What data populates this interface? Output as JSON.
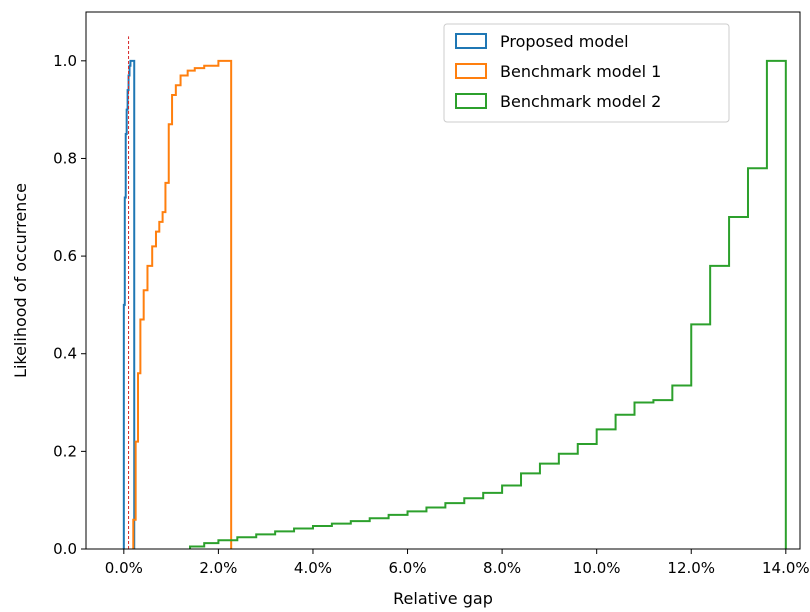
{
  "chart_data": {
    "type": "line",
    "subtype": "cumulative-step-histogram",
    "title": "",
    "xlabel": "Relative gap",
    "ylabel": "Likelihood of occurrence",
    "xlim": [
      -0.8,
      14.3
    ],
    "ylim": [
      0.0,
      1.1
    ],
    "x_ticks": [
      0,
      2,
      4,
      6,
      8,
      10,
      12,
      14
    ],
    "x_tick_labels": [
      "0.0%",
      "2.0%",
      "4.0%",
      "6.0%",
      "8.0%",
      "10.0%",
      "12.0%",
      "14.0%"
    ],
    "y_ticks": [
      0.0,
      0.2,
      0.4,
      0.6,
      0.8,
      1.0
    ],
    "y_tick_labels": [
      "0.0",
      "0.2",
      "0.4",
      "0.6",
      "0.8",
      "1.0"
    ],
    "grid": false,
    "legend_position": "top-right",
    "reference_line": {
      "x": 0.1,
      "y_top": 1.05,
      "color": "#d62728",
      "style": "dashed"
    },
    "series": [
      {
        "name": "Proposed model",
        "color": "#1f77b4",
        "x": [
          0.0,
          0.02,
          0.04,
          0.06,
          0.08,
          0.1,
          0.12,
          0.14,
          0.18,
          0.22
        ],
        "y": [
          0.5,
          0.72,
          0.85,
          0.9,
          0.94,
          0.97,
          0.99,
          1.0,
          1.0,
          0.0
        ]
      },
      {
        "name": "Benchmark model 1",
        "color": "#ff7f0e",
        "x": [
          0.2,
          0.25,
          0.3,
          0.35,
          0.42,
          0.5,
          0.6,
          0.68,
          0.75,
          0.82,
          0.88,
          0.95,
          1.02,
          1.1,
          1.2,
          1.35,
          1.5,
          1.7,
          2.0,
          2.27
        ],
        "y": [
          0.06,
          0.22,
          0.36,
          0.47,
          0.53,
          0.58,
          0.62,
          0.65,
          0.67,
          0.69,
          0.75,
          0.87,
          0.93,
          0.95,
          0.97,
          0.98,
          0.985,
          0.99,
          1.0,
          0.0
        ]
      },
      {
        "name": "Benchmark model 2",
        "color": "#2ca02c",
        "x": [
          1.4,
          1.7,
          2.0,
          2.4,
          2.8,
          3.2,
          3.6,
          4.0,
          4.4,
          4.8,
          5.2,
          5.6,
          6.0,
          6.4,
          6.8,
          7.2,
          7.6,
          8.0,
          8.4,
          8.8,
          9.2,
          9.6,
          10.0,
          10.4,
          10.8,
          11.2,
          11.6,
          12.0,
          12.4,
          12.8,
          13.2,
          13.6,
          14.0
        ],
        "y": [
          0.005,
          0.012,
          0.018,
          0.024,
          0.03,
          0.036,
          0.042,
          0.047,
          0.052,
          0.057,
          0.063,
          0.07,
          0.077,
          0.085,
          0.094,
          0.104,
          0.115,
          0.13,
          0.155,
          0.175,
          0.195,
          0.215,
          0.245,
          0.275,
          0.3,
          0.305,
          0.335,
          0.46,
          0.58,
          0.68,
          0.78,
          1.0,
          0.0
        ]
      }
    ]
  }
}
